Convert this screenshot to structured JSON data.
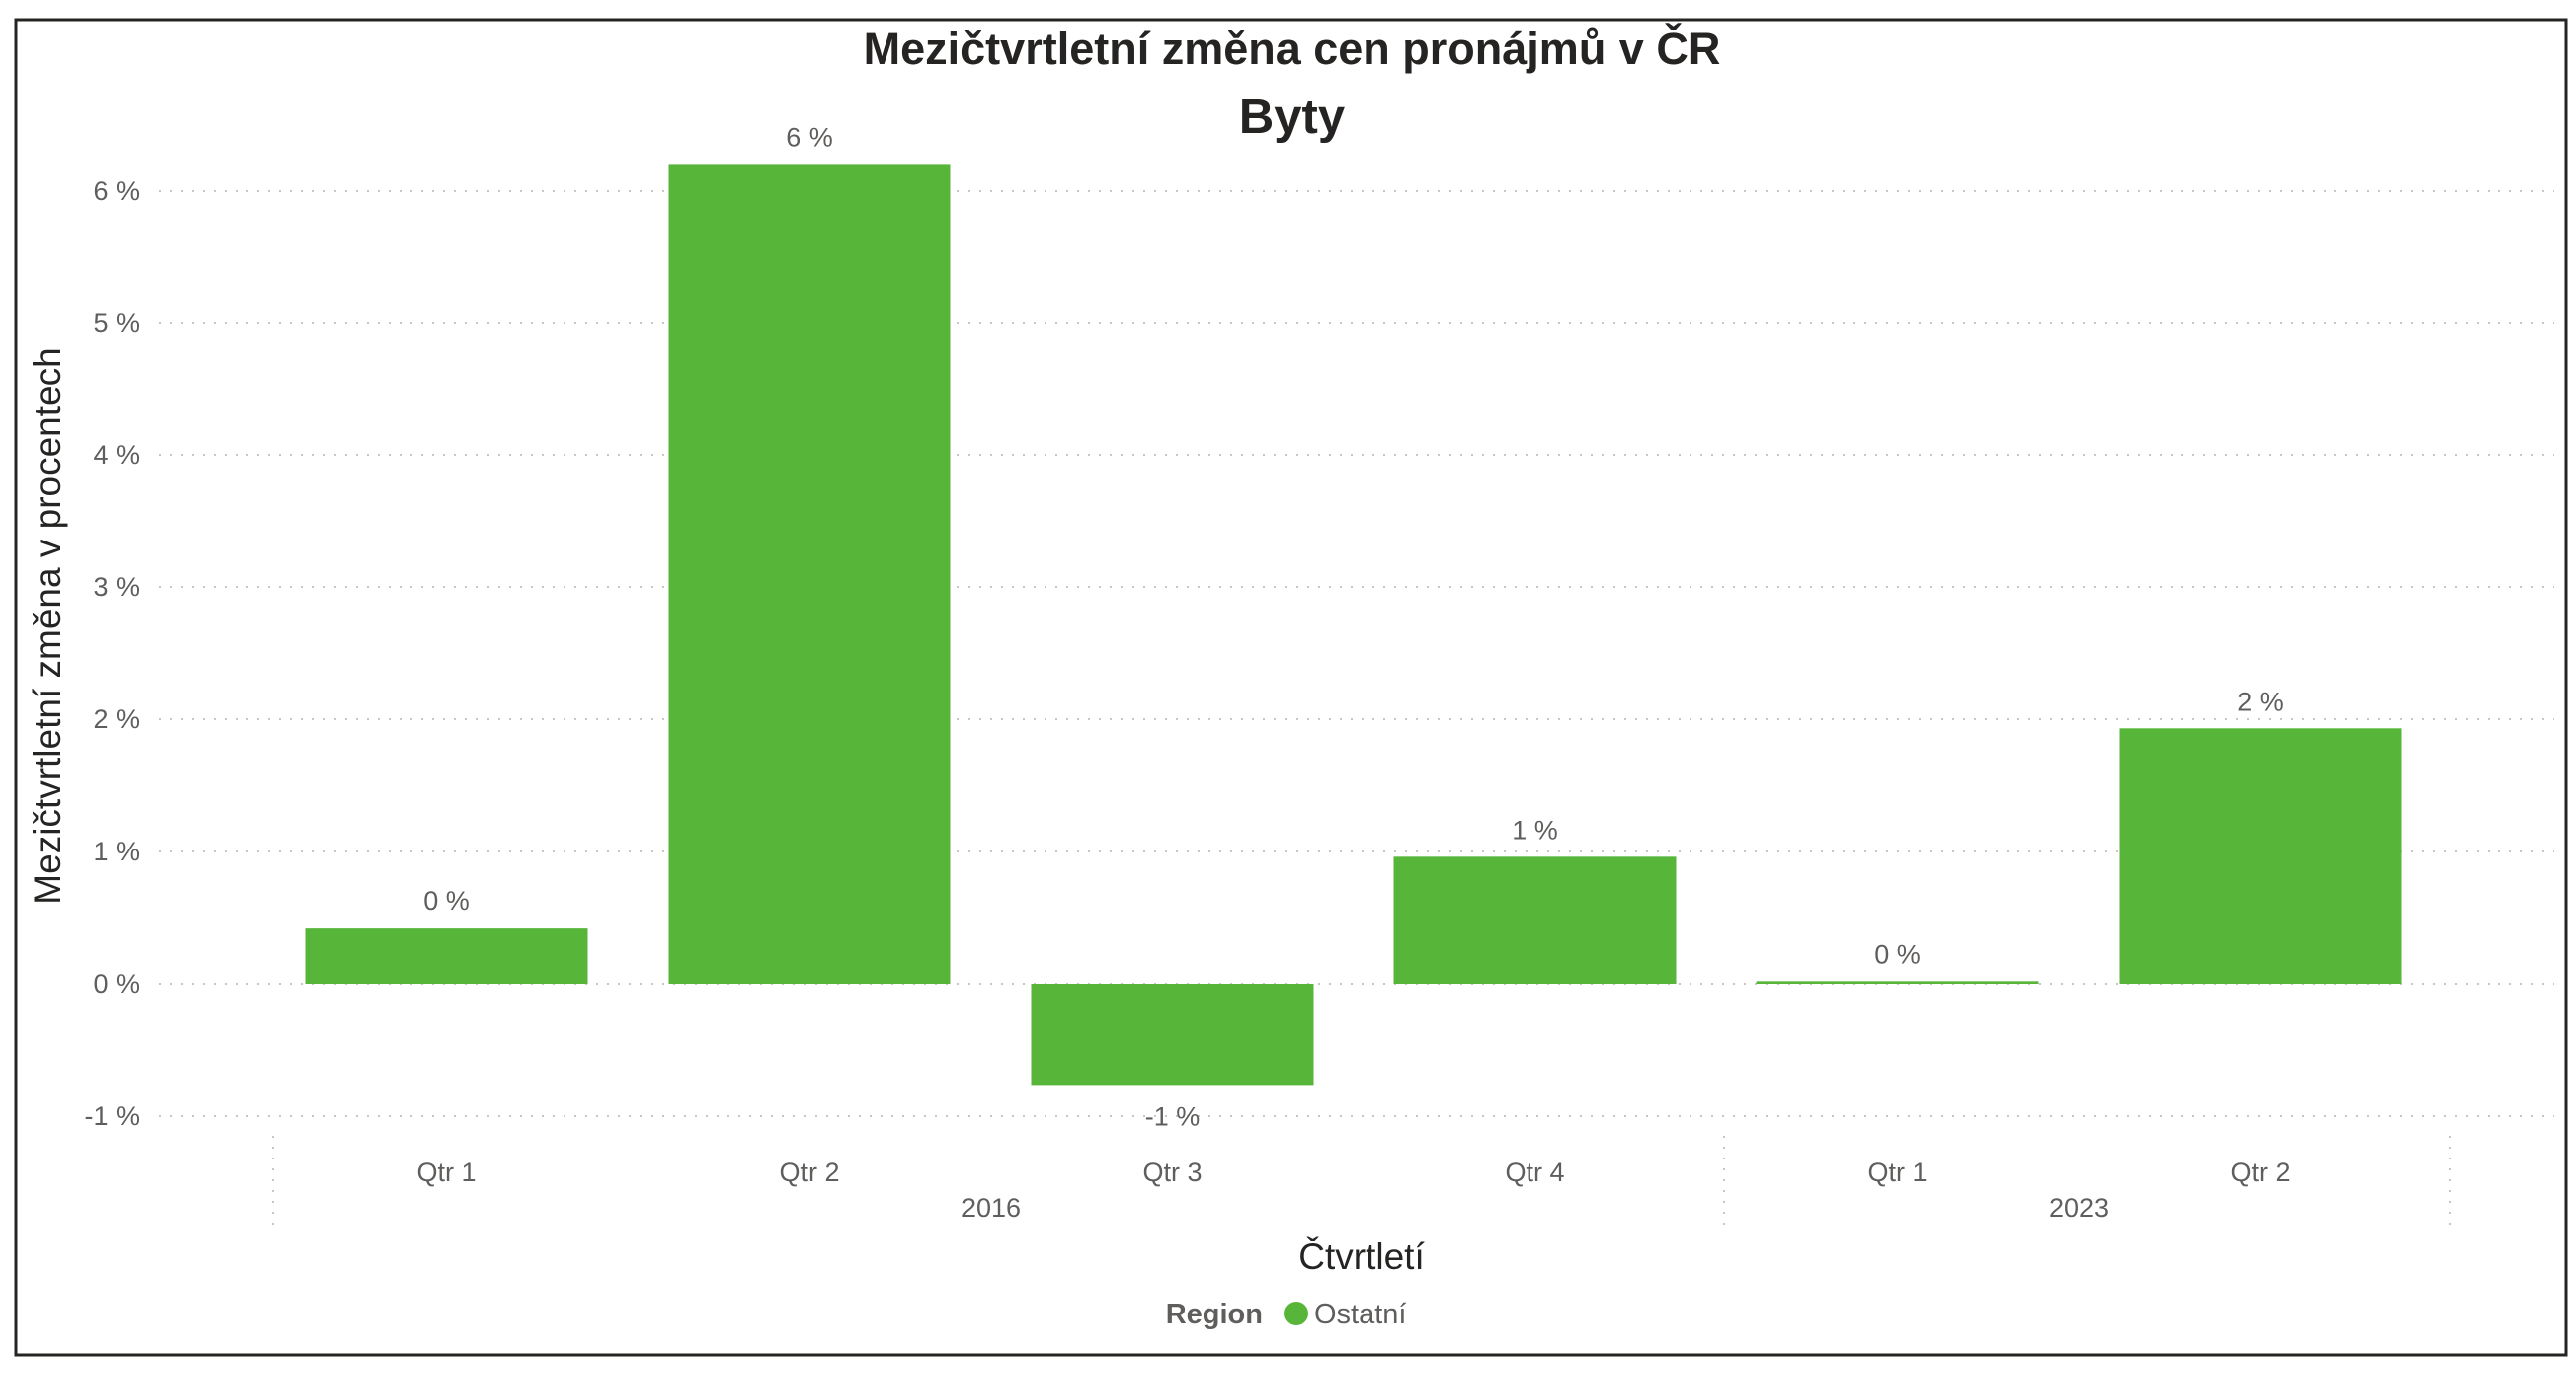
{
  "chart_data": {
    "type": "bar",
    "title": "Mezičtvrtletní změna cen pronájmů v ČR",
    "subtitle": "Byty",
    "xlabel": "Čtvrtletí",
    "ylabel": "Mezičtvrtletní změna v procentech",
    "categories": [
      {
        "quarter": "Qtr 1",
        "year": "2016"
      },
      {
        "quarter": "Qtr 2",
        "year": "2016"
      },
      {
        "quarter": "Qtr 3",
        "year": "2016"
      },
      {
        "quarter": "Qtr 4",
        "year": "2016"
      },
      {
        "quarter": "Qtr 1",
        "year": "2023"
      },
      {
        "quarter": "Qtr 2",
        "year": "2023"
      }
    ],
    "year_groups": [
      "2016",
      "2023"
    ],
    "series": [
      {
        "name": "Ostatní",
        "color": "#57b63a",
        "values": [
          0.42,
          6.2,
          -0.77,
          0.96,
          0.02,
          1.93
        ],
        "data_labels": [
          "0 %",
          "6 %",
          "-1 %",
          "1 %",
          "0 %",
          "2 %"
        ]
      }
    ],
    "yticks": [
      -1,
      0,
      1,
      2,
      3,
      4,
      5,
      6
    ],
    "ytick_labels": [
      "-1 %",
      "0 %",
      "1 %",
      "2 %",
      "3 %",
      "4 %",
      "5 %",
      "6 %"
    ],
    "ylim": [
      -1,
      6
    ],
    "grid": true,
    "legend": {
      "title": "Region",
      "placement": "bottom-center",
      "items": [
        "Ostatní"
      ]
    }
  }
}
